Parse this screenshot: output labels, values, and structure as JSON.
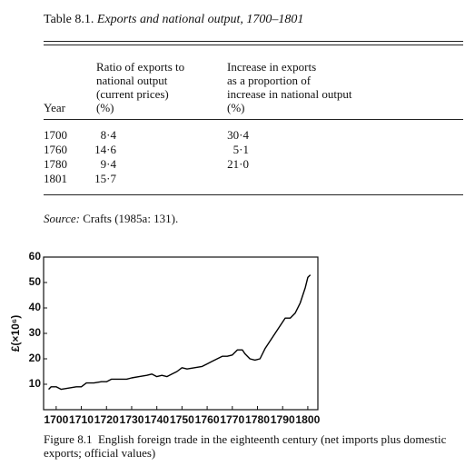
{
  "table": {
    "label": "Table 8.1.",
    "title": "Exports and national output, 1700–1801",
    "headers": [
      [
        "Year"
      ],
      [
        "Ratio of exports to",
        "national output",
        "(current prices)",
        "(%)"
      ],
      [
        "Increase in exports",
        "as a proportion of",
        "increase in national output",
        "(%)"
      ]
    ],
    "rows": [
      [
        "1700",
        "8·4",
        "30·4"
      ],
      [
        "1760",
        "14·6",
        "5·1"
      ],
      [
        "1780",
        "9·4",
        "21·0"
      ],
      [
        "1801",
        "15·7"
      ]
    ],
    "source_label": "Source:",
    "source": "Crafts (1985a: 131)."
  },
  "chart_data": {
    "type": "line",
    "ylabel": "£(×10⁶)",
    "color": "#000000",
    "x": [
      1697,
      1698,
      1700,
      1702,
      1705,
      1708,
      1710,
      1712,
      1715,
      1718,
      1720,
      1722,
      1725,
      1728,
      1730,
      1733,
      1736,
      1738,
      1740,
      1742,
      1744,
      1746,
      1748,
      1750,
      1752,
      1755,
      1758,
      1760,
      1762,
      1764,
      1766,
      1768,
      1770,
      1772,
      1774,
      1775,
      1777,
      1779,
      1781,
      1783,
      1785,
      1787,
      1789,
      1791,
      1793,
      1795,
      1797,
      1799,
      1800,
      1801
    ],
    "values": [
      8,
      9,
      9,
      8,
      8.5,
      9,
      9,
      10.5,
      10.5,
      11,
      11,
      12,
      12,
      12,
      12.5,
      13,
      13.5,
      14,
      13,
      13.5,
      13,
      14,
      15,
      16.5,
      16,
      16.5,
      17,
      18,
      19,
      20,
      21,
      21,
      21.5,
      23.5,
      23.5,
      22,
      20,
      19.5,
      20,
      24,
      27,
      30,
      33,
      36,
      36,
      38,
      42,
      48,
      52,
      53
    ],
    "xlim": [
      1695,
      1804
    ],
    "ylim": [
      0,
      60
    ],
    "xticks": [
      1700,
      1710,
      1720,
      1730,
      1740,
      1750,
      1760,
      1770,
      1780,
      1790,
      1800
    ],
    "yticks": [
      10,
      20,
      30,
      40,
      50,
      60
    ]
  },
  "figure": {
    "label": "Figure 8.1",
    "caption": "English foreign trade in the eighteenth century (net imports plus domestic exports; official values)"
  }
}
